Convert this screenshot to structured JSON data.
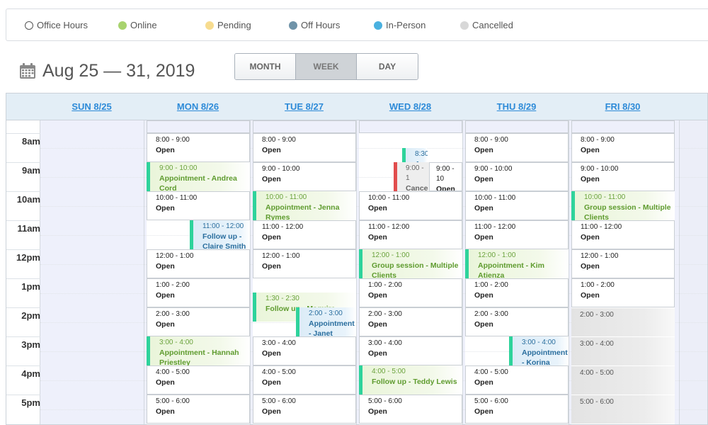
{
  "legend": [
    {
      "label": "Office Hours",
      "color": "#ffffff",
      "ring": true
    },
    {
      "label": "Online",
      "color": "#a8d36e"
    },
    {
      "label": "Pending",
      "color": "#f7dc8f"
    },
    {
      "label": "Off Hours",
      "color": "#6f93a8"
    },
    {
      "label": "In-Person",
      "color": "#4ab1e0"
    },
    {
      "label": "Cancelled",
      "color": "#d8d8d8"
    }
  ],
  "header": {
    "date_range": "Aug 25 — 31, 2019",
    "icon": "calendar-icon"
  },
  "views": {
    "month": "MONTH",
    "week": "WEEK",
    "day": "DAY",
    "active": "WEEK"
  },
  "days": [
    "SUN 8/25",
    "MON 8/26",
    "TUE 8/27",
    "WED 8/28",
    "THU 8/29",
    "FRI 8/30"
  ],
  "times": [
    "8am",
    "9am",
    "10am",
    "11am",
    "12pm",
    "1pm",
    "2pm",
    "3pm",
    "4pm",
    "5pm"
  ],
  "events": {
    "mon": [
      {
        "time": "8:00 - 9:00",
        "label": "Open",
        "kind": "open"
      },
      {
        "time": "9:00 - 10:00",
        "label": "Appointment - Andrea Cord",
        "kind": "online"
      },
      {
        "time": "10:00 - 11:00",
        "label": "Open",
        "kind": "open"
      },
      {
        "time": "11:00 - 12:00",
        "label": "Follow up - Claire Smith",
        "kind": "inperson"
      },
      {
        "time": "12:00 - 1:00",
        "label": "Open",
        "kind": "open"
      },
      {
        "time": "1:00 - 2:00",
        "label": "Open",
        "kind": "open"
      },
      {
        "time": "2:00 - 3:00",
        "label": "Open",
        "kind": "open"
      },
      {
        "time": "3:00 - 4:00",
        "label": "Appointment - Hannah Priestley",
        "kind": "online"
      },
      {
        "time": "4:00 - 5:00",
        "label": "Open",
        "kind": "open"
      },
      {
        "time": "5:00 - 6:00",
        "label": "Open",
        "kind": "open"
      }
    ],
    "tue": [
      {
        "time": "8:00 - 9:00",
        "label": "Open",
        "kind": "open"
      },
      {
        "time": "9:00 - 10:00",
        "label": "Open",
        "kind": "open"
      },
      {
        "time": "10:00 - 11:00",
        "label": "Appointment - Jenna Rymes",
        "kind": "online"
      },
      {
        "time": "11:00 - 12:00",
        "label": "Open",
        "kind": "open"
      },
      {
        "time": "12:00 - 1:00",
        "label": "Open",
        "kind": "open"
      },
      {
        "time": "1:30 - 2:30",
        "label": "Follow up - Maguire",
        "kind": "online"
      },
      {
        "time": "2:00 - 3:00",
        "label": "Appointment - Janet",
        "kind": "inperson"
      },
      {
        "time": "3:00 - 4:00",
        "label": "Open",
        "kind": "open"
      },
      {
        "time": "4:00 - 5:00",
        "label": "Open",
        "kind": "open"
      },
      {
        "time": "5:00 - 6:00",
        "label": "Open",
        "kind": "open"
      }
    ],
    "wed": [
      {
        "time": "8:30",
        "label": "A",
        "kind": "inperson"
      },
      {
        "time": "9:00 - 1",
        "label": "Cance",
        "kind": "cancelled"
      },
      {
        "time": "9:00 - 10",
        "label": "Open",
        "kind": "open"
      },
      {
        "time": "10:00 - 11:00",
        "label": "Open",
        "kind": "open"
      },
      {
        "time": "11:00 - 12:00",
        "label": "Open",
        "kind": "open"
      },
      {
        "time": "12:00 - 1:00",
        "label": "Group session - Multiple Clients",
        "kind": "online"
      },
      {
        "time": "1:00 - 2:00",
        "label": "Open",
        "kind": "open"
      },
      {
        "time": "2:00 - 3:00",
        "label": "Open",
        "kind": "open"
      },
      {
        "time": "3:00 - 4:00",
        "label": "Open",
        "kind": "open"
      },
      {
        "time": "4:00 - 5:00",
        "label": "Follow up - Teddy Lewis",
        "kind": "online"
      },
      {
        "time": "5:00 - 6:00",
        "label": "Open",
        "kind": "open"
      }
    ],
    "thu": [
      {
        "time": "8:00 - 9:00",
        "label": "Open",
        "kind": "open"
      },
      {
        "time": "9:00 - 10:00",
        "label": "Open",
        "kind": "open"
      },
      {
        "time": "10:00 - 11:00",
        "label": "Open",
        "kind": "open"
      },
      {
        "time": "11:00 - 12:00",
        "label": "Open",
        "kind": "open"
      },
      {
        "time": "12:00 - 1:00",
        "label": "Appointment - Kim Atienza",
        "kind": "online"
      },
      {
        "time": "1:00 - 2:00",
        "label": "Open",
        "kind": "open"
      },
      {
        "time": "2:00 - 3:00",
        "label": "Open",
        "kind": "open"
      },
      {
        "time": "3:00 - 4:00",
        "label": "Appointment - Korina",
        "kind": "inperson"
      },
      {
        "time": "4:00 - 5:00",
        "label": "Open",
        "kind": "open"
      },
      {
        "time": "5:00 - 6:00",
        "label": "Open",
        "kind": "open"
      }
    ],
    "fri": [
      {
        "time": "8:00 - 9:00",
        "label": "Open",
        "kind": "open"
      },
      {
        "time": "9:00 - 10:00",
        "label": "Open",
        "kind": "open"
      },
      {
        "time": "10:00 - 11:00",
        "label": "Group session - Multiple Clients",
        "kind": "online"
      },
      {
        "time": "11:00 - 12:00",
        "label": "Open",
        "kind": "open"
      },
      {
        "time": "12:00 - 1:00",
        "label": "Open",
        "kind": "open"
      },
      {
        "time": "1:00 - 2:00",
        "label": "Open",
        "kind": "open"
      },
      {
        "time": "2:00 - 3:00",
        "label": "",
        "kind": "off"
      },
      {
        "time": "3:00 - 4:00",
        "label": "",
        "kind": "off"
      },
      {
        "time": "4:00 - 5:00",
        "label": "",
        "kind": "off"
      },
      {
        "time": "5:00 - 6:00",
        "label": "",
        "kind": "off"
      }
    ]
  }
}
